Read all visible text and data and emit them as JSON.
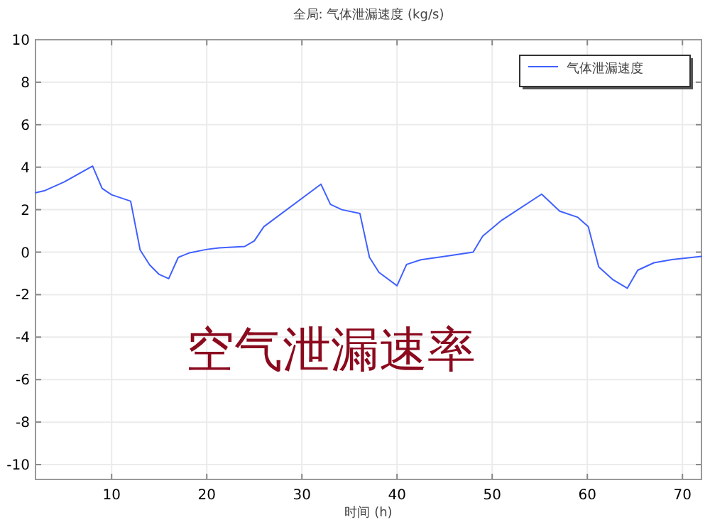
{
  "chart_data": {
    "type": "line",
    "title": "全局: 气体泄漏速度 (kg/s)",
    "xlabel": "时间 (h)",
    "annotations": [
      "空气泄漏速率"
    ],
    "xlim": [
      2,
      72
    ],
    "ylim": [
      -10.7,
      10
    ],
    "xticks": [
      10,
      20,
      30,
      40,
      50,
      60,
      70
    ],
    "yticks": [
      -10,
      -8,
      -6,
      -4,
      -2,
      0,
      2,
      4,
      6,
      8,
      10
    ],
    "grid": true,
    "legend": "top right",
    "line_style": "solid",
    "marker": "none",
    "series": [
      {
        "name": "气体泄漏速度",
        "color": "#4060ff",
        "x": [
          2,
          3,
          5,
          8,
          9,
          10,
          12,
          13,
          14,
          15,
          16,
          17,
          18.2,
          20,
          21.3,
          24,
          25,
          26,
          32,
          33,
          34.2,
          36.1,
          37.1,
          38.1,
          40,
          41,
          42.5,
          45,
          48,
          49,
          51,
          55.2,
          57.1,
          59,
          60.1,
          61.2,
          62.7,
          64.2,
          65.3,
          67,
          68.9,
          72
        ],
        "values": [
          2.8,
          2.9,
          3.3,
          4.05,
          3.0,
          2.7,
          2.4,
          0.1,
          -0.6,
          -1.05,
          -1.25,
          -0.25,
          -0.03,
          0.13,
          0.2,
          0.27,
          0.53,
          1.2,
          3.2,
          2.25,
          2.0,
          1.82,
          -0.24,
          -0.95,
          -1.58,
          -0.58,
          -0.36,
          -0.2,
          0.0,
          0.75,
          1.5,
          2.73,
          1.93,
          1.64,
          1.2,
          -0.69,
          -1.3,
          -1.7,
          -0.85,
          -0.5,
          -0.35,
          -0.2
        ]
      }
    ]
  }
}
